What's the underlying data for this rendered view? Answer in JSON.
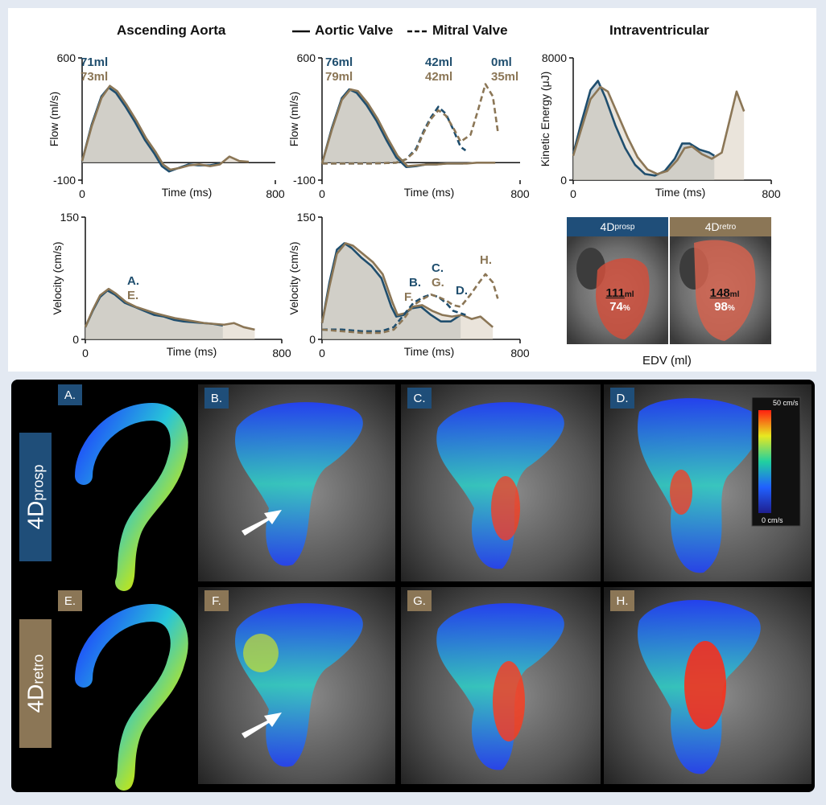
{
  "headers": {
    "ascending": "Ascending Aorta",
    "legend_aortic": "Aortic Valve",
    "legend_mitral": "Mitral Valve",
    "intraventricular": "Intraventricular"
  },
  "colors": {
    "prosp": "#1f4e6e",
    "retro": "#8b7656",
    "prosp_fill": "#9aaab0",
    "retro_fill": "#d8cdbd"
  },
  "chart_data": [
    {
      "id": "flow-aorta",
      "type": "line",
      "xlabel": "Time (ms)",
      "ylabel": "Flow (ml/s)",
      "xlim": [
        0,
        800
      ],
      "ylim": [
        -100,
        600
      ],
      "xticks": [
        "0",
        "800"
      ],
      "yticks": [
        "600",
        "-100"
      ],
      "annotations": [
        {
          "text": "71ml",
          "series": "prosp"
        },
        {
          "text": "73ml",
          "series": "retro"
        }
      ],
      "series": [
        {
          "name": "4Dprosp",
          "style": "solid",
          "x": [
            0,
            40,
            80,
            110,
            140,
            180,
            220,
            260,
            300,
            330,
            360,
            400,
            440,
            480,
            530,
            570
          ],
          "y": [
            10,
            220,
            380,
            430,
            400,
            320,
            230,
            130,
            50,
            -20,
            -50,
            -30,
            -10,
            -15,
            -15,
            -5
          ]
        },
        {
          "name": "4Dretro",
          "style": "solid",
          "x": [
            0,
            40,
            80,
            115,
            145,
            185,
            225,
            265,
            305,
            335,
            365,
            405,
            445,
            485,
            530,
            570,
            610,
            650,
            690
          ],
          "y": [
            10,
            210,
            370,
            440,
            410,
            330,
            240,
            140,
            60,
            -10,
            -40,
            -30,
            -15,
            -10,
            -20,
            -10,
            35,
            10,
            5
          ]
        }
      ]
    },
    {
      "id": "flow-valves",
      "type": "line",
      "xlabel": "Time (ms)",
      "ylabel": "Flow (ml/s)",
      "xlim": [
        0,
        800
      ],
      "ylim": [
        -100,
        600
      ],
      "xticks": [
        "0",
        "800"
      ],
      "yticks": [
        "600",
        "-100"
      ],
      "annotations": [
        {
          "text": "76ml",
          "series": "prosp"
        },
        {
          "text": "79ml",
          "series": "retro"
        },
        {
          "text": "42ml",
          "series": "prosp"
        },
        {
          "text": "42ml",
          "series": "retro"
        },
        {
          "text": "0ml",
          "series": "prosp"
        },
        {
          "text": "35ml",
          "series": "retro"
        }
      ],
      "series": [
        {
          "name": "4Dprosp aortic",
          "style": "solid",
          "x": [
            0,
            40,
            80,
            110,
            140,
            180,
            220,
            260,
            300,
            340,
            380,
            420,
            460,
            500,
            540,
            570
          ],
          "y": [
            -5,
            200,
            370,
            420,
            400,
            330,
            240,
            130,
            30,
            -25,
            -20,
            -10,
            -10,
            -5,
            -5,
            -5
          ]
        },
        {
          "name": "4Dretro aortic",
          "style": "solid",
          "x": [
            0,
            40,
            80,
            115,
            145,
            185,
            225,
            265,
            305,
            345,
            385,
            425,
            465,
            505,
            545,
            585,
            625,
            665,
            700
          ],
          "y": [
            -5,
            190,
            360,
            420,
            410,
            340,
            250,
            140,
            40,
            -20,
            -15,
            -10,
            -10,
            -5,
            -5,
            -5,
            0,
            0,
            0
          ]
        },
        {
          "name": "4Dprosp mitral",
          "style": "dashed",
          "x": [
            0,
            100,
            200,
            300,
            340,
            380,
            410,
            440,
            470,
            500,
            530,
            560,
            580
          ],
          "y": [
            -5,
            -5,
            -5,
            0,
            20,
            80,
            180,
            260,
            320,
            280,
            190,
            90,
            70
          ]
        },
        {
          "name": "4Dretro mitral",
          "style": "dashed",
          "x": [
            0,
            100,
            200,
            300,
            340,
            380,
            410,
            440,
            470,
            500,
            530,
            560,
            600,
            630,
            660,
            690,
            710
          ],
          "y": [
            -5,
            -5,
            -5,
            0,
            20,
            70,
            170,
            250,
            300,
            270,
            200,
            120,
            160,
            300,
            450,
            380,
            180
          ]
        }
      ]
    },
    {
      "id": "kinetic-energy",
      "type": "line",
      "xlabel": "Time (ms)",
      "ylabel": "Kinetic Energy (μJ)",
      "xlim": [
        0,
        800
      ],
      "ylim": [
        0,
        8000
      ],
      "xticks": [
        "0",
        "800"
      ],
      "yticks": [
        "8000",
        "0"
      ],
      "annotations": [],
      "series": [
        {
          "name": "4Dprosp",
          "style": "solid",
          "x": [
            0,
            30,
            70,
            100,
            130,
            170,
            210,
            250,
            290,
            330,
            370,
            410,
            440,
            470,
            510,
            550,
            570
          ],
          "y": [
            1700,
            3600,
            5900,
            6500,
            5400,
            3600,
            2100,
            1000,
            400,
            300,
            600,
            1400,
            2400,
            2400,
            2000,
            1800,
            1600
          ]
        },
        {
          "name": "4Dretro",
          "style": "solid",
          "x": [
            0,
            30,
            70,
            110,
            140,
            180,
            220,
            260,
            300,
            340,
            380,
            420,
            450,
            480,
            520,
            560,
            600,
            630,
            660,
            690
          ],
          "y": [
            1600,
            3200,
            5300,
            6100,
            5800,
            4300,
            2800,
            1500,
            700,
            400,
            600,
            1300,
            2100,
            2200,
            1700,
            1400,
            1800,
            3800,
            5800,
            4500
          ]
        }
      ]
    },
    {
      "id": "velocity-aorta",
      "type": "line",
      "xlabel": "Time (ms)",
      "ylabel": "Velocity (cm/s)",
      "xlim": [
        0,
        800
      ],
      "ylim": [
        0,
        150
      ],
      "xticks": [
        "0",
        "800"
      ],
      "yticks": [
        "150",
        "0"
      ],
      "annotations": [
        {
          "text": "A.",
          "series": "prosp"
        },
        {
          "text": "E.",
          "series": "retro"
        }
      ],
      "series": [
        {
          "name": "4Dprosp",
          "style": "solid",
          "x": [
            0,
            30,
            60,
            90,
            120,
            160,
            200,
            240,
            280,
            320,
            360,
            400,
            440,
            480,
            520,
            560
          ],
          "y": [
            15,
            35,
            52,
            60,
            55,
            45,
            40,
            35,
            30,
            28,
            24,
            22,
            21,
            20,
            19,
            17
          ]
        },
        {
          "name": "4Dretro",
          "style": "solid",
          "x": [
            0,
            30,
            60,
            95,
            125,
            165,
            205,
            245,
            285,
            325,
            365,
            405,
            445,
            485,
            525,
            565,
            605,
            645,
            690
          ],
          "y": [
            15,
            36,
            54,
            62,
            56,
            46,
            40,
            36,
            32,
            29,
            26,
            24,
            22,
            20,
            19,
            18,
            20,
            15,
            12
          ]
        }
      ]
    },
    {
      "id": "velocity-valves",
      "type": "line",
      "xlabel": "Time (ms)",
      "ylabel": "Velocity (cm/s)",
      "xlim": [
        0,
        800
      ],
      "ylim": [
        0,
        150
      ],
      "xticks": [
        "0",
        "800"
      ],
      "yticks": [
        "150",
        "0"
      ],
      "annotations": [
        {
          "text": "B.",
          "series": "prosp"
        },
        {
          "text": "F.",
          "series": "retro"
        },
        {
          "text": "C.",
          "series": "prosp"
        },
        {
          "text": "G.",
          "series": "retro"
        },
        {
          "text": "D.",
          "series": "prosp"
        },
        {
          "text": "H.",
          "series": "retro"
        }
      ],
      "series": [
        {
          "name": "4Dprosp aortic",
          "style": "solid",
          "x": [
            0,
            30,
            60,
            90,
            120,
            160,
            200,
            240,
            280,
            300,
            330,
            360,
            400,
            440,
            480,
            520,
            560
          ],
          "y": [
            20,
            70,
            110,
            118,
            112,
            100,
            90,
            75,
            40,
            28,
            30,
            38,
            40,
            30,
            22,
            22,
            30
          ]
        },
        {
          "name": "4Dretro aortic",
          "style": "solid",
          "x": [
            0,
            30,
            60,
            95,
            125,
            165,
            205,
            245,
            285,
            305,
            335,
            365,
            405,
            445,
            485,
            525,
            565,
            605,
            640,
            690
          ],
          "y": [
            20,
            65,
            105,
            118,
            115,
            105,
            95,
            80,
            45,
            30,
            32,
            40,
            42,
            35,
            30,
            28,
            30,
            25,
            28,
            15
          ]
        },
        {
          "name": "4Dprosp mitral",
          "style": "dashed",
          "x": [
            0,
            80,
            160,
            240,
            290,
            330,
            370,
            410,
            440,
            470,
            500,
            530,
            560,
            580
          ],
          "y": [
            12,
            12,
            10,
            10,
            15,
            30,
            45,
            52,
            55,
            52,
            45,
            35,
            32,
            30
          ]
        },
        {
          "name": "4Dretro mitral",
          "style": "dashed",
          "x": [
            0,
            80,
            160,
            240,
            290,
            330,
            370,
            410,
            440,
            470,
            500,
            530,
            560,
            600,
            630,
            660,
            690,
            710
          ],
          "y": [
            12,
            10,
            8,
            8,
            12,
            25,
            42,
            50,
            55,
            52,
            48,
            42,
            40,
            55,
            68,
            80,
            70,
            50
          ]
        }
      ]
    }
  ],
  "edv": {
    "prosp_label": "4D",
    "prosp_sub": "prosp",
    "retro_label": "4D",
    "retro_sub": "retro",
    "prosp_volume": "111",
    "prosp_volume_unit": "ml",
    "prosp_percent": "74",
    "prosp_percent_unit": "%",
    "retro_volume": "148",
    "retro_volume_unit": "ml",
    "retro_percent": "98",
    "retro_percent_unit": "%",
    "axis_label": "EDV (ml)"
  },
  "panels": {
    "row_prosp_label": "4D",
    "row_prosp_sub": "prosp",
    "row_retro_label": "4D",
    "row_retro_sub": "retro",
    "badges": [
      "A.",
      "B.",
      "C.",
      "D.",
      "E.",
      "F.",
      "G.",
      "H."
    ],
    "colorbar_max": "50 cm/s",
    "colorbar_min": "0 cm/s"
  }
}
